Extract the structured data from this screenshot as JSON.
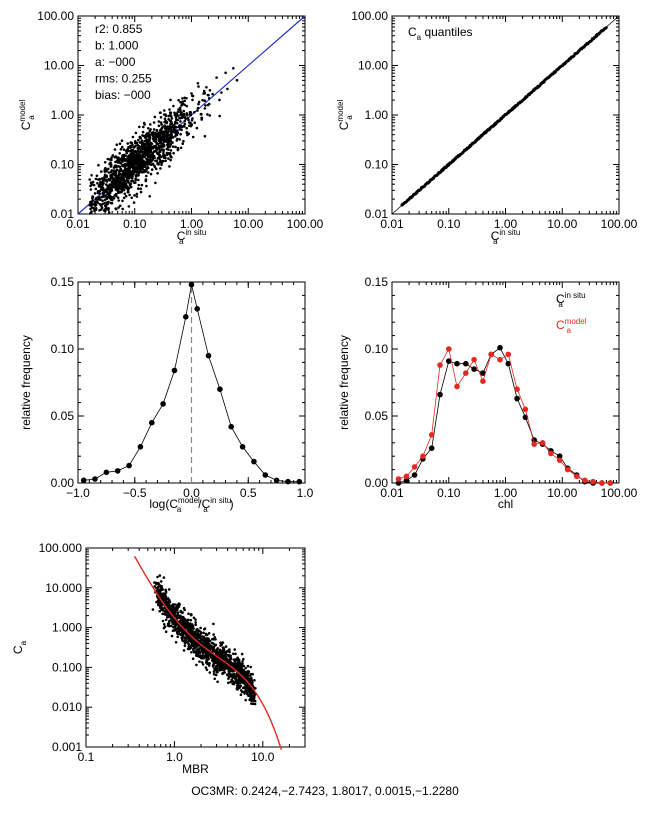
{
  "chart_data": [
    {
      "id": "scatter",
      "type": "scatter",
      "xscale": "log",
      "yscale": "log",
      "xlim": [
        0.01,
        100
      ],
      "ylim": [
        0.01,
        100
      ],
      "xticks": [
        "0.01",
        "0.10",
        "1.00",
        "10.00",
        "100.00"
      ],
      "yticks": [
        "0.01",
        "0.10",
        "1.00",
        "10.00",
        "100.00"
      ],
      "xlabel": {
        "base": "C",
        "sub": "a",
        "sup": "in situ"
      },
      "ylabel": {
        "base": "C",
        "sub": "a",
        "sup": "model"
      },
      "stats": [
        "r2: 0.855",
        "b: 1.000",
        "a: −000",
        "rms: 0.255",
        "bias: −000"
      ],
      "point_color": "#000000",
      "line_color": "#1f2fd0",
      "one_to_one_line": true
    },
    {
      "id": "quantiles",
      "type": "line",
      "xscale": "log",
      "yscale": "log",
      "xlim": [
        0.01,
        100
      ],
      "ylim": [
        0.01,
        100
      ],
      "xticks": [
        "0.01",
        "0.10",
        "1.00",
        "10.00",
        "100.00"
      ],
      "yticks": [
        "0.01",
        "0.10",
        "1.00",
        "10.00",
        "100.00"
      ],
      "xlabel": {
        "base": "C",
        "sub": "a",
        "sup": "in situ"
      },
      "ylabel": {
        "base": "C",
        "sub": "a",
        "sup": "model"
      },
      "annotation": {
        "base": "C",
        "sub": "a",
        "rest": " quantiles"
      },
      "x_range_data": [
        0.015,
        60
      ],
      "one_to_one_line": true
    },
    {
      "id": "log-ratio-hist",
      "type": "line",
      "xlim": [
        -1.0,
        1.0
      ],
      "ylim": [
        0,
        0.15
      ],
      "xticks": [
        "−1.0",
        "−0.5",
        "0.0",
        "0.5",
        "1.0"
      ],
      "yticks": [
        "0.00",
        "0.05",
        "0.10",
        "0.15"
      ],
      "xlabel": {
        "parts": [
          "log(C",
          "a",
          "model",
          "/C",
          "a",
          "in situ",
          ")"
        ]
      },
      "ylabel": "relative frequency",
      "x": [
        -0.95,
        -0.85,
        -0.75,
        -0.65,
        -0.55,
        -0.45,
        -0.35,
        -0.25,
        -0.15,
        -0.05,
        0.0,
        0.05,
        0.15,
        0.25,
        0.35,
        0.45,
        0.55,
        0.65,
        0.75,
        0.85,
        0.95
      ],
      "y": [
        0.002,
        0.003,
        0.008,
        0.009,
        0.013,
        0.027,
        0.045,
        0.059,
        0.084,
        0.124,
        0.148,
        0.13,
        0.095,
        0.07,
        0.042,
        0.027,
        0.016,
        0.006,
        0.002,
        0.001,
        0.001
      ],
      "vline_x": 0.0,
      "vline_style": "dashed"
    },
    {
      "id": "chl-hist",
      "type": "line",
      "xscale": "log",
      "xlim": [
        0.01,
        100
      ],
      "ylim": [
        0,
        0.15
      ],
      "xticks": [
        "0.01",
        "0.10",
        "1.00",
        "10.00",
        "100.00"
      ],
      "yticks": [
        "0.00",
        "0.05",
        "0.10",
        "0.15"
      ],
      "xlabel": "chl",
      "ylabel": "relative frequency",
      "legend_placement": "top-right",
      "series": [
        {
          "label": {
            "base": "C",
            "sub": "a",
            "sup": "in situ"
          },
          "color": "#000000",
          "x": [
            0.013,
            0.018,
            0.025,
            0.035,
            0.05,
            0.07,
            0.1,
            0.14,
            0.2,
            0.28,
            0.4,
            0.56,
            0.8,
            1.12,
            1.6,
            2.24,
            3.2,
            4.5,
            6.3,
            9.0,
            12.5,
            18,
            25,
            35,
            50,
            70
          ],
          "y": [
            0.0,
            0.002,
            0.006,
            0.018,
            0.026,
            0.066,
            0.091,
            0.089,
            0.089,
            0.085,
            0.082,
            0.096,
            0.101,
            0.089,
            0.063,
            0.049,
            0.032,
            0.029,
            0.024,
            0.02,
            0.011,
            0.006,
            0.001,
            0.0,
            0.0,
            0.0
          ]
        },
        {
          "label": {
            "base": "C",
            "sub": "a",
            "sup": "model"
          },
          "color": "#e32a22",
          "x": [
            0.013,
            0.018,
            0.025,
            0.035,
            0.05,
            0.07,
            0.1,
            0.14,
            0.2,
            0.28,
            0.4,
            0.56,
            0.8,
            1.12,
            1.6,
            2.24,
            3.2,
            4.5,
            6.3,
            9.0,
            12.5,
            18,
            25,
            35,
            50,
            70
          ],
          "y": [
            0.003,
            0.005,
            0.012,
            0.02,
            0.036,
            0.088,
            0.1,
            0.072,
            0.082,
            0.092,
            0.076,
            0.096,
            0.092,
            0.096,
            0.07,
            0.055,
            0.029,
            0.03,
            0.022,
            0.017,
            0.01,
            0.005,
            0.002,
            0.001,
            0.0,
            0.0
          ]
        }
      ]
    },
    {
      "id": "mbr",
      "type": "scatter",
      "xscale": "log",
      "yscale": "log",
      "xlim": [
        0.1,
        30
      ],
      "ylim": [
        0.001,
        100
      ],
      "xticks": [
        "0.1",
        "1.0",
        "10.0"
      ],
      "yticks": [
        "0.001",
        "0.010",
        "0.100",
        "1.000",
        "10.000",
        "100.000"
      ],
      "xlabel": "MBR",
      "ylabel": {
        "base": "C",
        "sub": "a"
      },
      "point_color": "#000000",
      "fit_color": "#e32a22",
      "fit_coefficients": [
        0.2424,
        -2.7423,
        1.8017,
        0.0015,
        -1.228
      ]
    }
  ],
  "footer": "OC3MR:  0.2424,−2.7423, 1.8017, 0.0015,−1.2280"
}
